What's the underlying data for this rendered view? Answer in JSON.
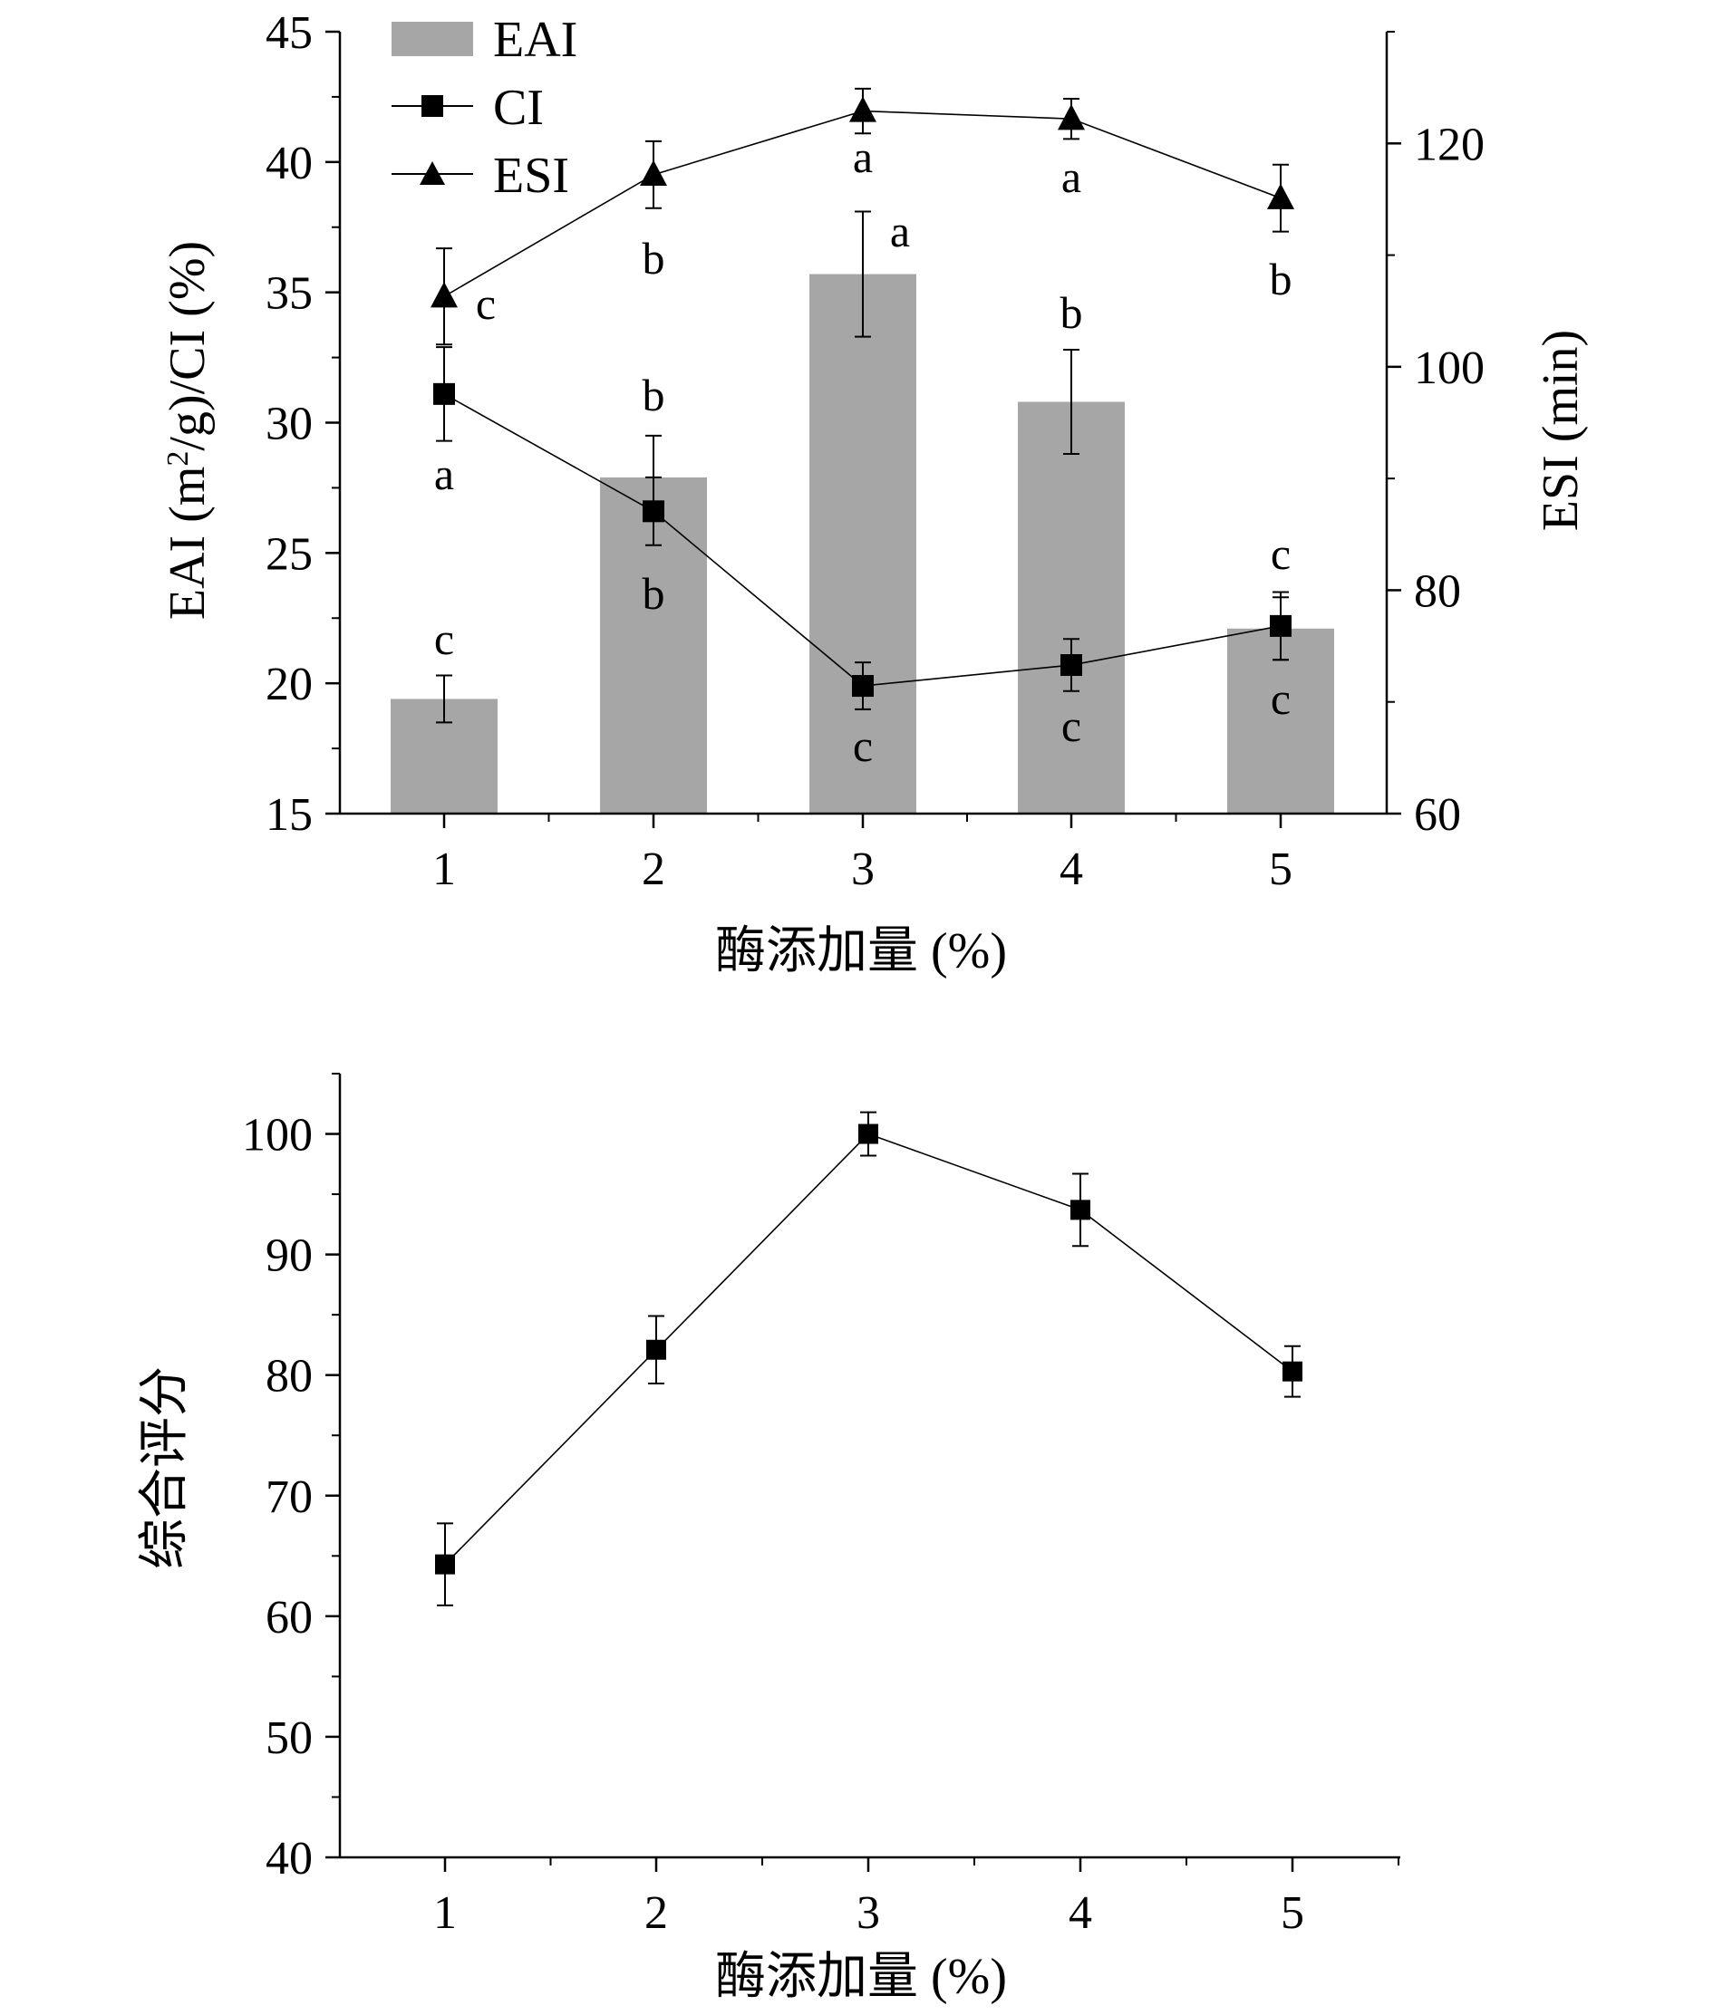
{
  "chart_data": [
    {
      "type": "bar+line",
      "title": "",
      "categories": [
        "1",
        "2",
        "3",
        "4",
        "5"
      ],
      "xlabel": "酶添加量 (%)",
      "ylabel": "EAI (m²/g)/CI (%)",
      "ylabel_right": "ESI (min)",
      "ylim": [
        15,
        45
      ],
      "yticks": [
        "15",
        "20",
        "25",
        "30",
        "35",
        "40",
        "45"
      ],
      "ylim_right": [
        60,
        130
      ],
      "yticks_right": [
        "60",
        "80",
        "100",
        "120"
      ],
      "legend": {
        "position": "top-left",
        "entries": [
          {
            "name": "EAI",
            "marker": "bar"
          },
          {
            "name": "CI",
            "marker": "square"
          },
          {
            "name": "ESI",
            "marker": "triangle"
          }
        ]
      },
      "series": [
        {
          "name": "EAI",
          "kind": "bar",
          "axis": "left",
          "color": "#a6a6a6",
          "values": [
            19.4,
            27.9,
            35.7,
            30.8,
            22.1
          ],
          "errors": [
            0.9,
            1.6,
            2.4,
            2.0,
            1.2
          ],
          "labels": [
            "c",
            "b",
            "a",
            "b",
            "c"
          ]
        },
        {
          "name": "CI",
          "kind": "line",
          "marker": "square",
          "axis": "left",
          "values": [
            31.1,
            26.6,
            19.9,
            20.7,
            22.2
          ],
          "errors": [
            1.8,
            1.3,
            0.9,
            1.0,
            1.3
          ],
          "labels": [
            "a",
            "b",
            "c",
            "c",
            "c"
          ]
        },
        {
          "name": "ESI",
          "kind": "line",
          "marker": "triangle",
          "axis": "right",
          "values": [
            106.3,
            117.2,
            122.9,
            122.2,
            115.1
          ],
          "errors": [
            4.3,
            3.0,
            2.0,
            1.8,
            3.0
          ],
          "labels": [
            "c",
            "b",
            "a",
            "a",
            "b"
          ]
        }
      ]
    },
    {
      "type": "line",
      "title": "",
      "categories": [
        "1",
        "2",
        "3",
        "4",
        "5"
      ],
      "xlabel": "酶添加量 (%)",
      "ylabel": "综合评分",
      "ylim": [
        40,
        105
      ],
      "yticks": [
        "40",
        "50",
        "60",
        "70",
        "80",
        "90",
        "100"
      ],
      "series": [
        {
          "name": "综合评分",
          "marker": "square",
          "values": [
            64.3,
            82.1,
            100.0,
            93.7,
            80.3
          ],
          "errors": [
            3.4,
            2.8,
            1.8,
            3.0,
            2.1
          ]
        }
      ]
    }
  ]
}
